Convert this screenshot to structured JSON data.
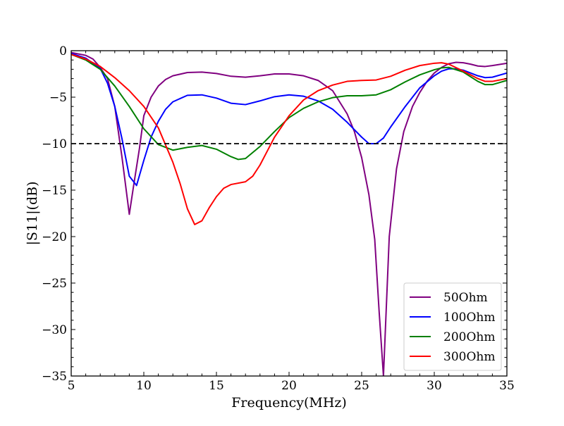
{
  "chart_data": {
    "type": "line",
    "title": "",
    "xlabel": "Frequency(MHz)",
    "ylabel": "|S11|(dB)",
    "xlim": [
      5,
      35
    ],
    "ylim": [
      -35,
      0
    ],
    "x_ticks": [
      5,
      10,
      15,
      20,
      25,
      30,
      35
    ],
    "x_tick_labels": [
      "5",
      "10",
      "15",
      "20",
      "25",
      "30",
      "35"
    ],
    "y_ticks": [
      0,
      -5,
      -10,
      -15,
      -20,
      -25,
      -30,
      -35
    ],
    "y_tick_labels": [
      "0",
      "−5",
      "−10",
      "−15",
      "−20",
      "−25",
      "−30",
      "−35"
    ],
    "grid": false,
    "legend_position": "lower-right",
    "reference_line": {
      "y": -10,
      "style": "dashed",
      "color": "#000000"
    },
    "series": [
      {
        "name": "50Ohm",
        "color": "#800080",
        "points": [
          [
            5,
            -0.2
          ],
          [
            6,
            -0.5
          ],
          [
            6.5,
            -0.9
          ],
          [
            7,
            -1.8
          ],
          [
            7.5,
            -3.0
          ],
          [
            8,
            -6.0
          ],
          [
            8.5,
            -11.5
          ],
          [
            9,
            -17.6
          ],
          [
            9.3,
            -14.5
          ],
          [
            9.7,
            -10.5
          ],
          [
            10,
            -7.0
          ],
          [
            10.5,
            -5.0
          ],
          [
            11,
            -3.8
          ],
          [
            11.5,
            -3.1
          ],
          [
            12,
            -2.7
          ],
          [
            13,
            -2.35
          ],
          [
            14,
            -2.3
          ],
          [
            15,
            -2.45
          ],
          [
            16,
            -2.75
          ],
          [
            17,
            -2.85
          ],
          [
            18,
            -2.7
          ],
          [
            19,
            -2.5
          ],
          [
            20,
            -2.5
          ],
          [
            21,
            -2.7
          ],
          [
            22,
            -3.2
          ],
          [
            23,
            -4.3
          ],
          [
            24,
            -6.8
          ],
          [
            24.5,
            -8.7
          ],
          [
            25,
            -11.5
          ],
          [
            25.5,
            -15.5
          ],
          [
            25.9,
            -20.3
          ],
          [
            26.2,
            -28.0
          ],
          [
            26.5,
            -35.0
          ],
          [
            26.9,
            -20.0
          ],
          [
            27.4,
            -12.7
          ],
          [
            27.9,
            -8.7
          ],
          [
            28.5,
            -6.0
          ],
          [
            29,
            -4.5
          ],
          [
            29.5,
            -3.3
          ],
          [
            30,
            -2.4
          ],
          [
            30.5,
            -1.8
          ],
          [
            31,
            -1.4
          ],
          [
            31.5,
            -1.25
          ],
          [
            32,
            -1.3
          ],
          [
            32.5,
            -1.45
          ],
          [
            33,
            -1.65
          ],
          [
            33.5,
            -1.7
          ],
          [
            34,
            -1.6
          ],
          [
            35,
            -1.35
          ]
        ]
      },
      {
        "name": "100Ohm",
        "color": "#0000ff",
        "points": [
          [
            5,
            -0.3
          ],
          [
            6,
            -0.8
          ],
          [
            7,
            -1.9
          ],
          [
            7.5,
            -3.5
          ],
          [
            8,
            -6.0
          ],
          [
            8.5,
            -9.5
          ],
          [
            9,
            -13.5
          ],
          [
            9.5,
            -14.5
          ],
          [
            10,
            -11.8
          ],
          [
            10.5,
            -9.3
          ],
          [
            11,
            -7.6
          ],
          [
            11.5,
            -6.3
          ],
          [
            12,
            -5.5
          ],
          [
            13,
            -4.8
          ],
          [
            14,
            -4.75
          ],
          [
            15,
            -5.1
          ],
          [
            16,
            -5.65
          ],
          [
            17,
            -5.8
          ],
          [
            18,
            -5.4
          ],
          [
            19,
            -4.95
          ],
          [
            20,
            -4.75
          ],
          [
            21,
            -4.9
          ],
          [
            22,
            -5.4
          ],
          [
            23,
            -6.3
          ],
          [
            24,
            -7.7
          ],
          [
            25,
            -9.3
          ],
          [
            25.5,
            -10.0
          ],
          [
            26,
            -10.0
          ],
          [
            26.5,
            -9.4
          ],
          [
            27,
            -8.2
          ],
          [
            28,
            -6.0
          ],
          [
            29,
            -4.0
          ],
          [
            30,
            -2.7
          ],
          [
            30.5,
            -2.2
          ],
          [
            31,
            -1.95
          ],
          [
            31.5,
            -1.95
          ],
          [
            32,
            -2.1
          ],
          [
            33,
            -2.7
          ],
          [
            33.5,
            -2.9
          ],
          [
            34,
            -2.85
          ],
          [
            35,
            -2.4
          ]
        ]
      },
      {
        "name": "200Ohm",
        "color": "#008000",
        "points": [
          [
            5,
            -0.4
          ],
          [
            6,
            -1.0
          ],
          [
            7,
            -2.0
          ],
          [
            8,
            -3.8
          ],
          [
            9,
            -6.0
          ],
          [
            10,
            -8.4
          ],
          [
            11,
            -10.1
          ],
          [
            12,
            -10.7
          ],
          [
            13,
            -10.4
          ],
          [
            14,
            -10.2
          ],
          [
            15,
            -10.6
          ],
          [
            16,
            -11.4
          ],
          [
            16.5,
            -11.7
          ],
          [
            17,
            -11.6
          ],
          [
            18,
            -10.3
          ],
          [
            19,
            -8.7
          ],
          [
            20,
            -7.2
          ],
          [
            21,
            -6.2
          ],
          [
            22,
            -5.5
          ],
          [
            23,
            -5.05
          ],
          [
            24,
            -4.85
          ],
          [
            25,
            -4.85
          ],
          [
            26,
            -4.75
          ],
          [
            27,
            -4.2
          ],
          [
            28,
            -3.35
          ],
          [
            29,
            -2.6
          ],
          [
            30,
            -2.05
          ],
          [
            30.5,
            -1.85
          ],
          [
            31,
            -1.8
          ],
          [
            32,
            -2.3
          ],
          [
            33,
            -3.3
          ],
          [
            33.5,
            -3.65
          ],
          [
            34,
            -3.65
          ],
          [
            35,
            -3.2
          ]
        ]
      },
      {
        "name": "300Ohm",
        "color": "#ff0000",
        "points": [
          [
            5,
            -0.4
          ],
          [
            6,
            -0.9
          ],
          [
            7,
            -1.7
          ],
          [
            8,
            -2.9
          ],
          [
            9,
            -4.3
          ],
          [
            10,
            -6.0
          ],
          [
            11,
            -8.3
          ],
          [
            12,
            -12.0
          ],
          [
            12.5,
            -14.3
          ],
          [
            13,
            -17.0
          ],
          [
            13.5,
            -18.7
          ],
          [
            14,
            -18.3
          ],
          [
            14.5,
            -16.9
          ],
          [
            15,
            -15.7
          ],
          [
            15.5,
            -14.8
          ],
          [
            16,
            -14.4
          ],
          [
            17,
            -14.1
          ],
          [
            17.5,
            -13.5
          ],
          [
            18,
            -12.3
          ],
          [
            19,
            -9.3
          ],
          [
            20,
            -7.0
          ],
          [
            21,
            -5.3
          ],
          [
            22,
            -4.3
          ],
          [
            23,
            -3.7
          ],
          [
            24,
            -3.3
          ],
          [
            25,
            -3.2
          ],
          [
            26,
            -3.15
          ],
          [
            27,
            -2.75
          ],
          [
            28,
            -2.1
          ],
          [
            29,
            -1.6
          ],
          [
            30,
            -1.35
          ],
          [
            30.5,
            -1.3
          ],
          [
            31,
            -1.45
          ],
          [
            32,
            -2.2
          ],
          [
            33,
            -3.0
          ],
          [
            33.5,
            -3.3
          ],
          [
            34,
            -3.3
          ],
          [
            35,
            -3.0
          ]
        ]
      }
    ]
  }
}
